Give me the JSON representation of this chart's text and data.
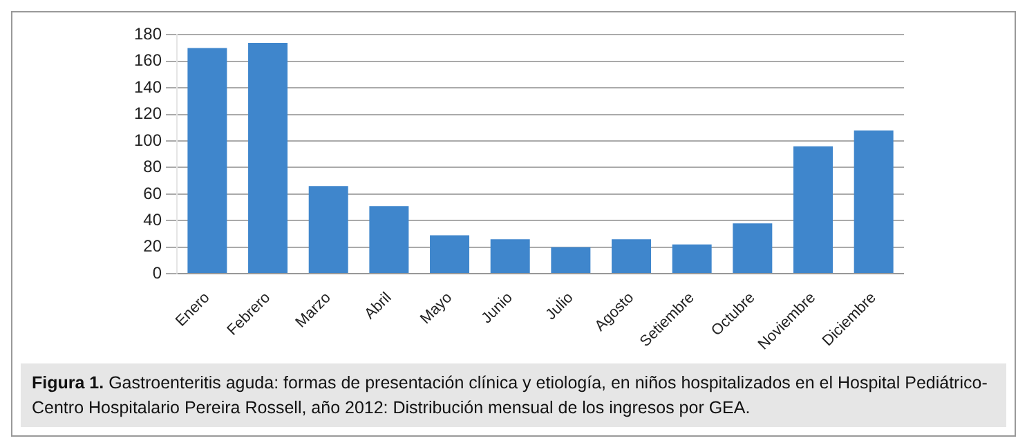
{
  "chart_data": {
    "type": "bar",
    "categories": [
      "Enero",
      "Febrero",
      "Marzo",
      "Abril",
      "Mayo",
      "Junio",
      "Julio",
      "Agosto",
      "Setiembre",
      "Octubre",
      "Noviembre",
      "Diciembre"
    ],
    "values": [
      170,
      174,
      66,
      51,
      29,
      26,
      20,
      26,
      22,
      38,
      96,
      108
    ],
    "color": "#3f86cc",
    "ylim": [
      0,
      180
    ],
    "yticks": [
      0,
      20,
      40,
      60,
      80,
      100,
      120,
      140,
      160,
      180
    ],
    "grid": "y",
    "annotations": [
      "Figura 1.",
      "Gastroenteritis aguda: formas de presentación clínica y etiología, en niños hospitalizados en el Hospital Pediátrico-Centro Hospitalario Pereira Rossell, año 2012: Distribución mensual de los ingresos por GEA."
    ]
  }
}
